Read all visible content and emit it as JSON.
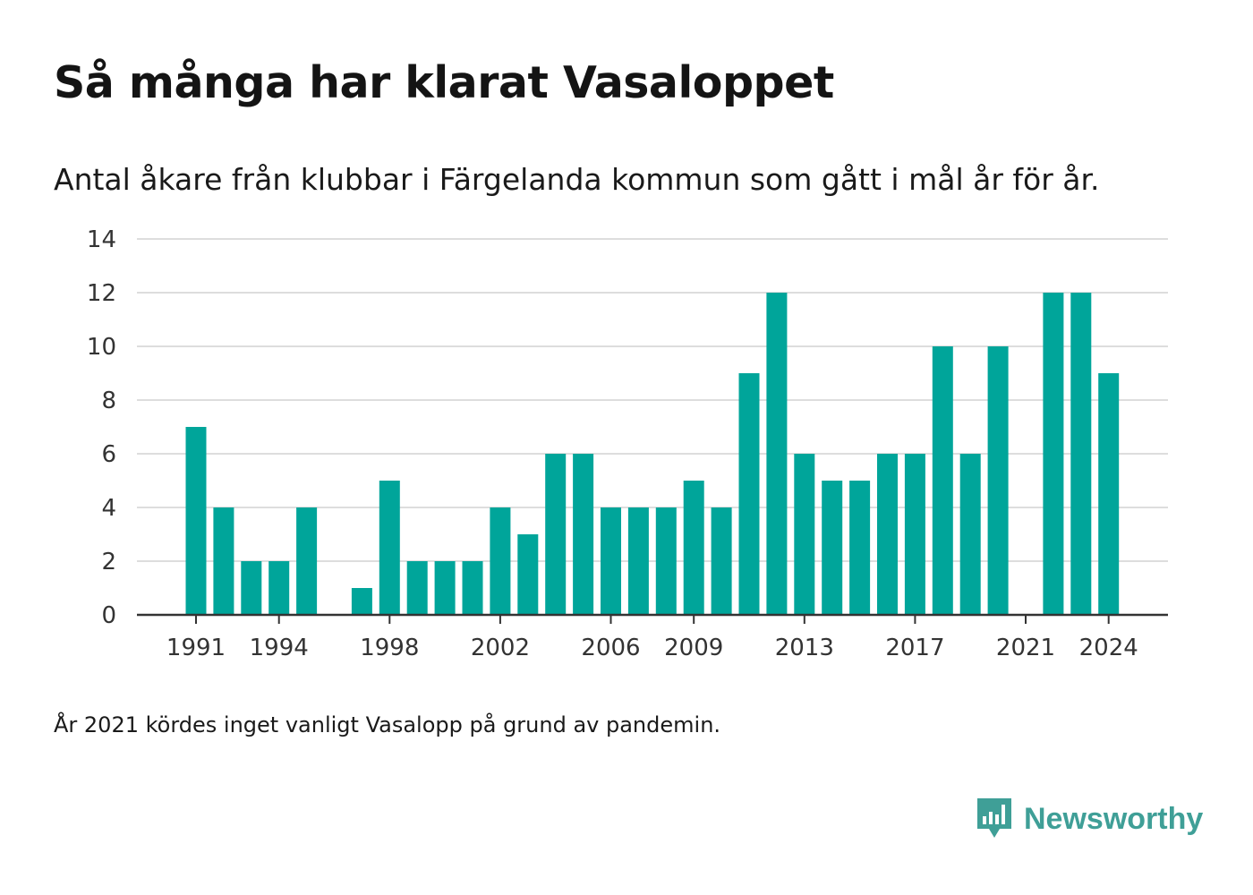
{
  "title": "Så många har klarat Vasaloppet",
  "subtitle": "Antal åkare från klubbar i Färgelanda kommun som gått i mål år för år.",
  "note": "År 2021 kördes inget vanligt Vasalopp på grund av pandemin.",
  "brand": {
    "name": "Newsworthy",
    "color": "#3f9f97",
    "icon": "newsworthy-logo-icon"
  },
  "colors": {
    "bar": "#00a59a",
    "grid": "#dddddd",
    "axis": "#333333",
    "text": "#333333"
  },
  "chart_data": {
    "type": "bar",
    "title": "Så många har klarat Vasaloppet",
    "subtitle": "Antal åkare från klubbar i Färgelanda kommun som gått i mål år för år.",
    "x": [
      1991,
      1992,
      1993,
      1994,
      1995,
      1996,
      1997,
      1998,
      1999,
      2000,
      2001,
      2002,
      2003,
      2004,
      2005,
      2006,
      2007,
      2008,
      2009,
      2010,
      2011,
      2012,
      2013,
      2014,
      2015,
      2016,
      2017,
      2018,
      2019,
      2020,
      2021,
      2022,
      2023,
      2024
    ],
    "values": [
      7,
      4,
      2,
      2,
      4,
      0,
      1,
      5,
      2,
      2,
      2,
      4,
      3,
      6,
      6,
      4,
      4,
      4,
      5,
      4,
      9,
      12,
      6,
      5,
      5,
      6,
      6,
      10,
      6,
      10,
      0,
      12,
      12,
      9
    ],
    "xticks": [
      1991,
      1994,
      1998,
      2002,
      2006,
      2009,
      2013,
      2017,
      2021,
      2024
    ],
    "yticks": [
      0,
      2,
      4,
      6,
      8,
      10,
      12,
      14
    ],
    "ylim": [
      0,
      14
    ],
    "xlabel": "",
    "ylabel": "",
    "grid": true,
    "legend": "none"
  }
}
